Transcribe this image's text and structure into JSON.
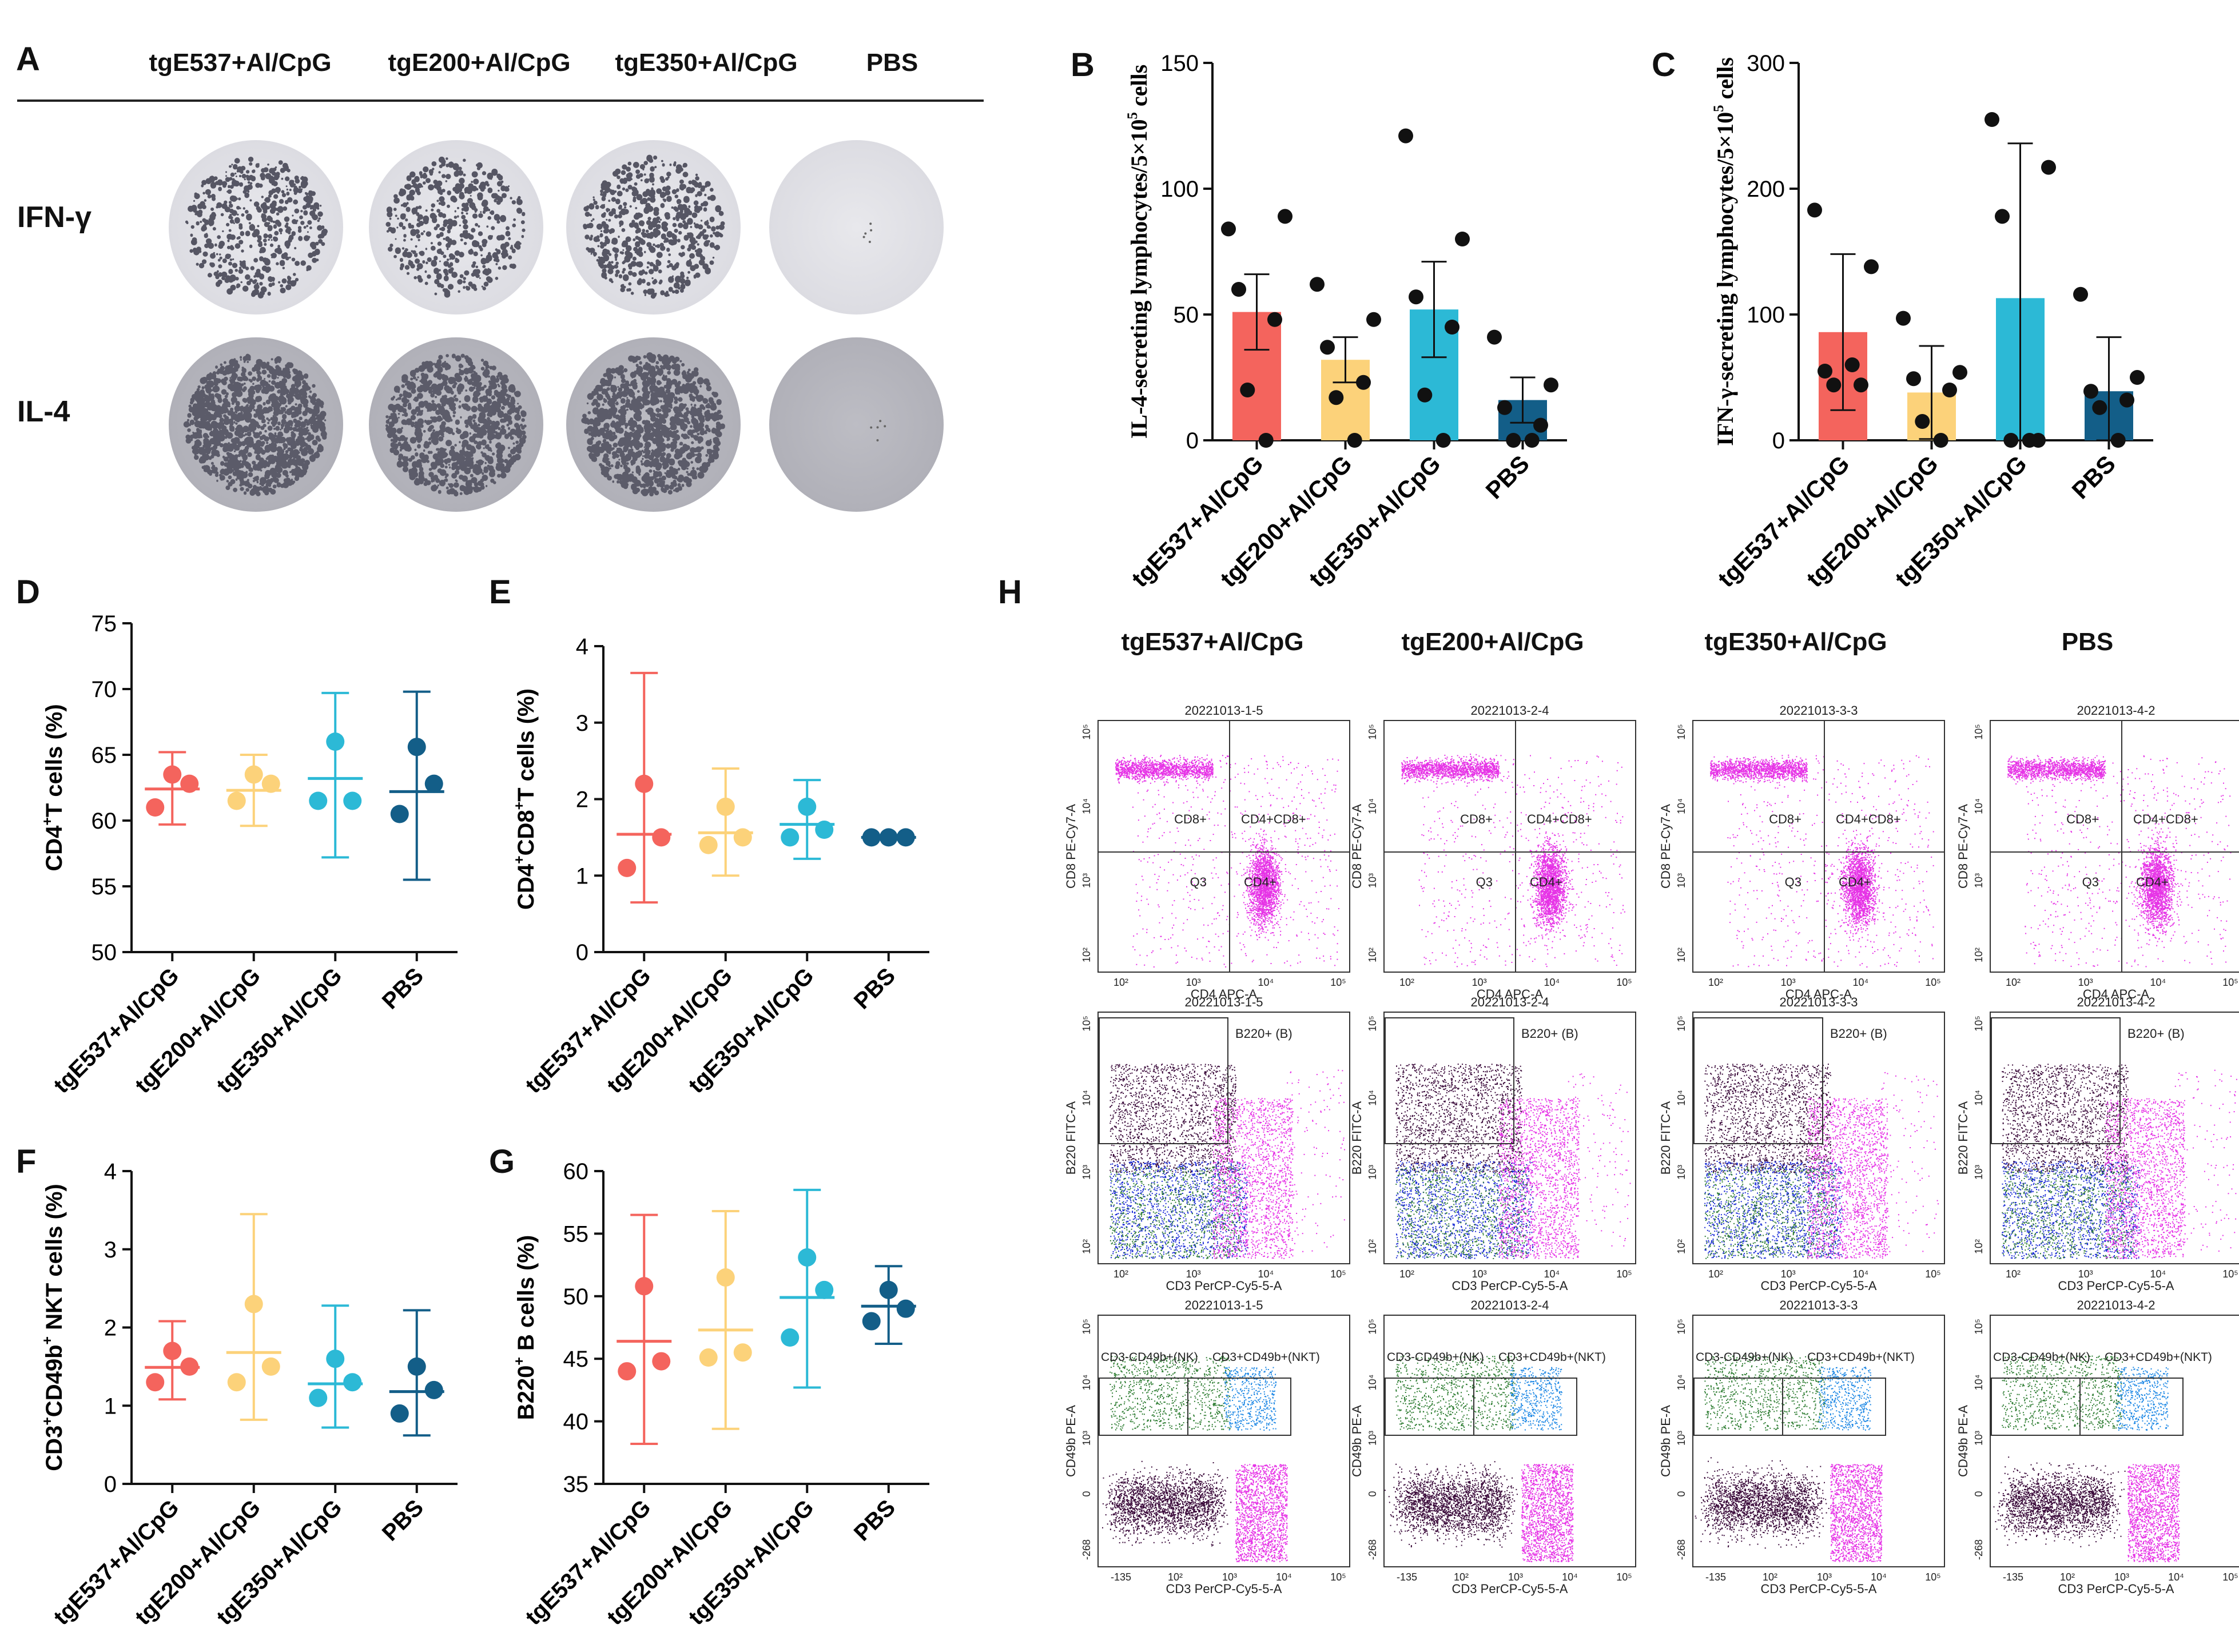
{
  "panel_labels": {
    "A": "A",
    "B": "B",
    "C": "C",
    "D": "D",
    "E": "E",
    "F": "F",
    "G": "G",
    "H": "H"
  },
  "groups": [
    "tgE537+Al/CpG",
    "tgE200+Al/CpG",
    "tgE350+Al/CpG",
    "PBS"
  ],
  "colors": {
    "tgE537": "#f4645d",
    "tgE200": "#fcd27a",
    "tgE350": "#2cb9d6",
    "PBS": "#135e88"
  },
  "panelA": {
    "column_headers": [
      "tgE537+Al/CpG",
      "tgE200+Al/CpG",
      "tgE350+Al/CpG",
      "PBS"
    ],
    "row_labels": [
      "IFN-γ",
      "IL-4"
    ]
  },
  "chart_data": [
    {
      "id": "B",
      "type": "bar",
      "categories": [
        "tgE537+Al/CpG",
        "tgE200+Al/CpG",
        "tgE350+Al/CpG",
        "PBS"
      ],
      "values": [
        51,
        32,
        52,
        16
      ],
      "errors": [
        15,
        9,
        19,
        9
      ],
      "points": [
        [
          84,
          89,
          60,
          48,
          20,
          0
        ],
        [
          62,
          48,
          37,
          23,
          17,
          0
        ],
        [
          121,
          80,
          57,
          45,
          18,
          0
        ],
        [
          41,
          22,
          13,
          6,
          0,
          0
        ]
      ],
      "ylabel_parts": [
        "IL-4-secreting lymphocytes/5×10",
        "5",
        " cells"
      ],
      "ylim": [
        0,
        150
      ],
      "yticks": [
        0,
        50,
        100,
        150
      ]
    },
    {
      "id": "C",
      "type": "bar",
      "categories": [
        "tgE537+Al/CpG",
        "tgE200+Al/CpG",
        "tgE350+Al/CpG",
        "PBS"
      ],
      "values": [
        86,
        38,
        113,
        39
      ],
      "errors": [
        62,
        37,
        123,
        43
      ],
      "points": [
        [
          183,
          138,
          55,
          44,
          44,
          60
        ],
        [
          97,
          54,
          49,
          40,
          15,
          0
        ],
        [
          255,
          217,
          178,
          0,
          0,
          0
        ],
        [
          116,
          50,
          39,
          32,
          26,
          0
        ]
      ],
      "ylabel_parts": [
        "IFN-γ-secreting lymphocytes/5×10",
        "5",
        " cells"
      ],
      "ylim": [
        0,
        300
      ],
      "yticks": [
        0,
        100,
        200,
        300
      ]
    },
    {
      "id": "D",
      "type": "scatter_mean_sd",
      "categories": [
        "tgE537+Al/CpG",
        "tgE200+Al/CpG",
        "tgE350+Al/CpG",
        "PBS"
      ],
      "means": [
        62.4,
        62.3,
        63.2,
        62.2
      ],
      "sd_low": [
        59.7,
        59.6,
        57.2,
        55.5
      ],
      "sd_high": [
        65.2,
        65.0,
        69.7,
        69.8
      ],
      "points": [
        [
          63.5,
          62.8,
          61.0
        ],
        [
          63.5,
          62.8,
          61.5
        ],
        [
          66.0,
          61.5,
          61.5
        ],
        [
          65.6,
          62.8,
          60.5
        ]
      ],
      "ylabel_parts": [
        "CD4",
        "+",
        "T cells  (%)"
      ],
      "ylim": [
        50,
        75
      ],
      "yticks": [
        50,
        55,
        60,
        65,
        70,
        75
      ]
    },
    {
      "id": "E",
      "type": "scatter_mean_sd",
      "categories": [
        "tgE537+Al/CpG",
        "tgE200+Al/CpG",
        "tgE350+Al/CpG",
        "PBS"
      ],
      "means": [
        1.54,
        1.56,
        1.67,
        1.5
      ],
      "sd_low": [
        0.65,
        1.0,
        1.22,
        1.5
      ],
      "sd_high": [
        3.65,
        2.4,
        2.25,
        1.5
      ],
      "points": [
        [
          2.2,
          1.5,
          1.1
        ],
        [
          1.9,
          1.5,
          1.4
        ],
        [
          1.9,
          1.6,
          1.5
        ],
        [
          1.5,
          1.5,
          1.5
        ]
      ],
      "ylabel_parts": [
        "CD4",
        "+",
        "CD8",
        "+",
        "T cells  (%)"
      ],
      "ylim": [
        0,
        4
      ],
      "yticks": [
        0,
        1,
        2,
        3,
        4
      ]
    },
    {
      "id": "F",
      "type": "scatter_mean_sd",
      "categories": [
        "tgE537+Al/CpG",
        "tgE200+Al/CpG",
        "tgE350+Al/CpG",
        "PBS"
      ],
      "means": [
        1.49,
        1.68,
        1.28,
        1.18
      ],
      "sd_low": [
        1.08,
        0.82,
        0.72,
        0.62
      ],
      "sd_high": [
        2.08,
        3.45,
        2.28,
        2.22
      ],
      "points": [
        [
          1.7,
          1.5,
          1.3
        ],
        [
          2.3,
          1.5,
          1.3
        ],
        [
          1.6,
          1.3,
          1.1
        ],
        [
          1.5,
          1.2,
          0.9
        ]
      ],
      "ylabel_parts": [
        "CD3",
        "+",
        "CD49b",
        "+",
        " NKT cells  (%)"
      ],
      "ylim": [
        0,
        4
      ],
      "yticks": [
        0,
        1,
        2,
        3,
        4
      ]
    },
    {
      "id": "G",
      "type": "scatter_mean_sd",
      "categories": [
        "tgE537+Al/CpG",
        "tgE200+Al/CpG",
        "tgE350+Al/CpG",
        "PBS"
      ],
      "means": [
        46.4,
        47.3,
        49.9,
        49.2
      ],
      "sd_low": [
        38.2,
        39.4,
        42.7,
        46.2
      ],
      "sd_high": [
        56.5,
        56.8,
        58.5,
        52.4
      ],
      "points": [
        [
          50.8,
          44.8,
          44.0
        ],
        [
          51.5,
          45.5,
          45.1
        ],
        [
          53.1,
          50.5,
          46.7
        ],
        [
          50.5,
          49.0,
          48.0
        ]
      ],
      "ylabel_parts": [
        "B220",
        "+",
        " B cells  (%)"
      ],
      "ylim": [
        35,
        60
      ],
      "yticks": [
        35,
        40,
        45,
        50,
        55,
        60
      ]
    }
  ],
  "panelH": {
    "column_headers": [
      "tgE537+Al/CpG",
      "tgE200+Al/CpG",
      "tgE350+Al/CpG",
      "PBS"
    ],
    "sample_ids": [
      "20221013-1-5",
      "20221013-2-4",
      "20221013-3-3",
      "20221013-4-2"
    ],
    "row1": {
      "xaxis": "CD4 APC-A",
      "yaxis": "CD8 PE-Cy7-A",
      "gates": [
        "CD8+",
        "CD4+CD8+",
        "Q3",
        "CD4+"
      ],
      "xticks": [
        "10²",
        "10³",
        "10⁴",
        "10⁵"
      ],
      "yticks": [
        "10²",
        "10³",
        "10⁴",
        "10⁵"
      ]
    },
    "row2": {
      "xaxis": "CD3 PerCP-Cy5-5-A",
      "yaxis": "B220 FITC-A",
      "gates": [
        "B220+ (B)"
      ],
      "xticks": [
        "10²",
        "10³",
        "10⁴",
        "10⁵"
      ],
      "yticks": [
        "10²",
        "10³",
        "10⁴",
        "10⁵"
      ]
    },
    "row3": {
      "xaxis": "CD3 PerCP-Cy5-5-A",
      "yaxis": "CD49b PE-A",
      "gates": [
        "CD3-CD49b+(NK)",
        "CD3+CD49b+(NKT)"
      ],
      "xticks": [
        "-135",
        "10²",
        "10³",
        "10⁴",
        "10⁵"
      ],
      "yticks": [
        "-268",
        "0",
        "10³",
        "10⁴",
        "10⁵"
      ]
    }
  }
}
